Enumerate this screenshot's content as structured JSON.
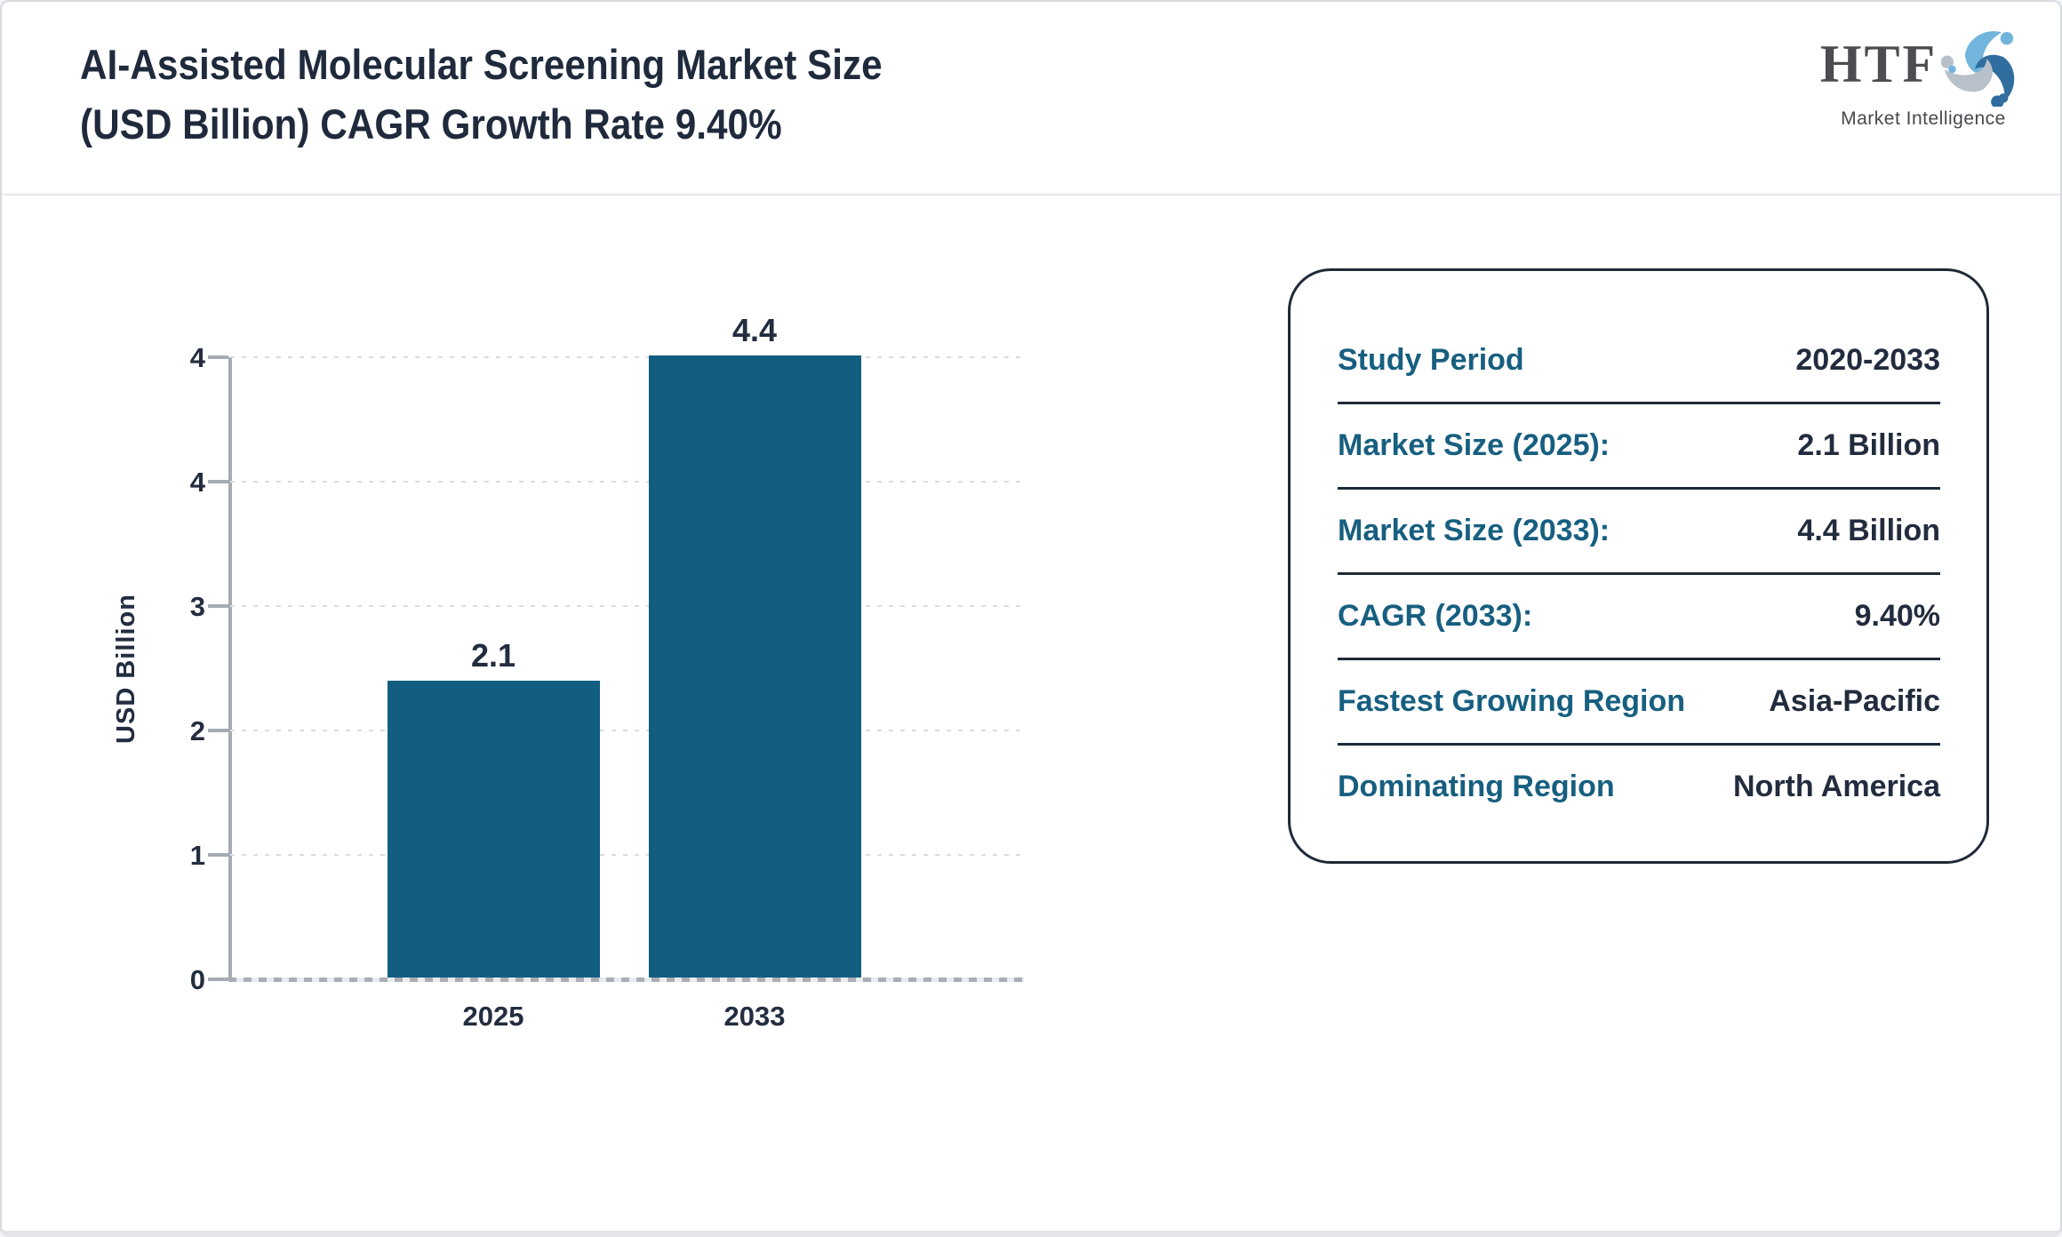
{
  "header": {
    "title_line1": "AI-Assisted Molecular Screening Market Size",
    "title_line2": "(USD Billion) CAGR Growth Rate 9.40%",
    "logo": {
      "text": "HTF",
      "subtext": "Market Intelligence",
      "swirl_colors": [
        "#72b5dc",
        "#2f6e9e",
        "#b8c1c9"
      ]
    }
  },
  "chart_data": {
    "type": "bar",
    "title": "AI-Assisted Molecular Screening Market Size (USD Billion) CAGR Growth Rate 9.40%",
    "categories": [
      "2025",
      "2033"
    ],
    "values": [
      2.1,
      4.4
    ],
    "bar_labels": [
      "2.1",
      "4.4"
    ],
    "xlabel": "",
    "ylabel": "USD Billion",
    "ylim": [
      0,
      4.4
    ],
    "ytick_labels_bottom_up": [
      "0",
      "1",
      "2",
      "3",
      "4",
      "4"
    ],
    "grid": true,
    "legend": "none",
    "bar_color": "#115e80",
    "axis_color": "#a7abb3",
    "text_color": "#232d3f"
  },
  "info_panel": {
    "label_color": "#175f80",
    "value_color": "#222c3e",
    "rows": [
      {
        "label": "Study Period",
        "value": "2020-2033"
      },
      {
        "label": "Market Size (2025):",
        "value": "2.1 Billion"
      },
      {
        "label": "Market Size (2033):",
        "value": "4.4 Billion"
      },
      {
        "label": "CAGR (2033):",
        "value": "9.40%"
      },
      {
        "label": "Fastest Growing Region",
        "value": "Asia-Pacific"
      },
      {
        "label": "Dominating Region",
        "value": "North America"
      }
    ]
  }
}
